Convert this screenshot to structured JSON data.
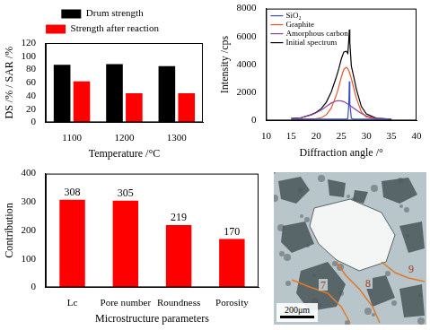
{
  "chart_data": [
    {
      "type": "bar",
      "categories": [
        "1100",
        "1200",
        "1300"
      ],
      "series": [
        {
          "name": "Drum strength",
          "color": "#000000",
          "values": [
            87,
            88,
            85
          ]
        },
        {
          "name": "Strength after reaction",
          "color": "#ff0000",
          "values": [
            62,
            44,
            44
          ]
        }
      ],
      "x_label": "Temperature /°C",
      "y_label": "DS /% / SAR /%",
      "ylim": [
        0,
        120
      ],
      "yticks": [
        0,
        20,
        40,
        60,
        80,
        100,
        120
      ],
      "grid": false,
      "legend": "top"
    },
    {
      "type": "line",
      "x": [
        15,
        17,
        19,
        20,
        21,
        22,
        23,
        24,
        24.5,
        25,
        25.5,
        26,
        26.3,
        26.5,
        26.6,
        26.7,
        27,
        27.5,
        28,
        29,
        30,
        32,
        35
      ],
      "series": [
        {
          "name": "SiO₂",
          "color": "#3b4fc4",
          "values": [
            100,
            100,
            100,
            100,
            100,
            100,
            100,
            100,
            100,
            100,
            100,
            100,
            150,
            1200,
            2800,
            1200,
            150,
            100,
            100,
            100,
            100,
            100,
            100
          ]
        },
        {
          "name": "Graphite",
          "color": "#e8562a",
          "values": [
            100,
            100,
            110,
            130,
            200,
            400,
            900,
            1800,
            2400,
            3100,
            3650,
            3800,
            3700,
            3550,
            3450,
            3350,
            3000,
            2300,
            1600,
            600,
            250,
            110,
            100
          ]
        },
        {
          "name": "Amorphous carbon",
          "color": "#8b3fa8",
          "values": [
            120,
            200,
            400,
            550,
            750,
            1000,
            1250,
            1400,
            1420,
            1400,
            1350,
            1250,
            1180,
            1130,
            1100,
            1080,
            1000,
            880,
            750,
            500,
            320,
            150,
            100
          ]
        },
        {
          "name": "Initial spectrum",
          "color": "#000000",
          "values": [
            150,
            200,
            420,
            580,
            850,
            1300,
            2050,
            3100,
            3700,
            4400,
            4900,
            4950,
            4800,
            5800,
            6500,
            5600,
            3900,
            3100,
            2250,
            1000,
            470,
            160,
            100
          ]
        }
      ],
      "x_label": "Diffraction angle /°",
      "y_label": "Intensity /cps",
      "xlim": [
        10,
        40
      ],
      "xticks": [
        10,
        15,
        20,
        25,
        30,
        35,
        40
      ],
      "ylim": [
        0,
        8000
      ],
      "yticks": [
        0,
        2000,
        4000,
        6000,
        8000
      ],
      "grid": false,
      "legend": "upper left"
    },
    {
      "type": "bar",
      "categories": [
        "Lc",
        "Pore number",
        "Roundness",
        "Porosity"
      ],
      "values": [
        308,
        305,
        219,
        170
      ],
      "color": "#ff0000",
      "x_label": "Microstructure parameters",
      "y_label": "Contribution",
      "ylim": [
        0,
        400
      ],
      "yticks": [
        0,
        100,
        200,
        300,
        400
      ],
      "grid": false,
      "data_labels": true
    }
  ],
  "micrograph": {
    "scale_bar": "200μm",
    "labels": [
      "7",
      "8",
      "9"
    ]
  }
}
